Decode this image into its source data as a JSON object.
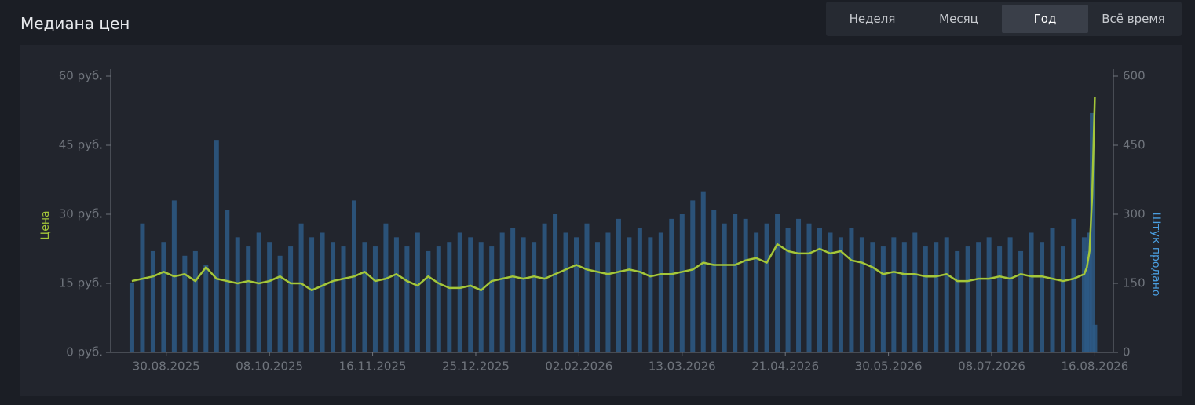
{
  "header": {
    "title": "Медиана цен",
    "tabs": [
      "Неделя",
      "Месяц",
      "Год",
      "Всё время"
    ],
    "active_tab": 2
  },
  "chart_data": {
    "type": "line-bar",
    "ylabel": "Цена",
    "y2label": "Штук продано",
    "x": [
      "17.08.2025",
      "21.08.2025",
      "25.08.2025",
      "29.08.2025",
      "02.09.2025",
      "06.09.2025",
      "10.09.2025",
      "14.09.2025",
      "18.09.2025",
      "22.09.2025",
      "26.09.2025",
      "30.09.2025",
      "04.10.2025",
      "08.10.2025",
      "12.10.2025",
      "16.10.2025",
      "20.10.2025",
      "24.10.2025",
      "28.10.2025",
      "01.11.2025",
      "05.11.2025",
      "09.11.2025",
      "13.11.2025",
      "17.11.2025",
      "21.11.2025",
      "25.11.2025",
      "29.11.2025",
      "03.12.2025",
      "07.12.2025",
      "11.12.2025",
      "15.12.2025",
      "19.12.2025",
      "23.12.2025",
      "27.12.2025",
      "31.12.2025",
      "04.01.2026",
      "08.01.2026",
      "12.01.2026",
      "16.01.2026",
      "20.01.2026",
      "24.01.2026",
      "28.01.2026",
      "01.02.2026",
      "05.02.2026",
      "09.02.2026",
      "13.02.2026",
      "17.02.2026",
      "21.02.2026",
      "25.02.2026",
      "01.03.2026",
      "05.03.2026",
      "09.03.2026",
      "13.03.2026",
      "17.03.2026",
      "21.03.2026",
      "25.03.2026",
      "29.03.2026",
      "02.04.2026",
      "06.04.2026",
      "10.04.2026",
      "14.04.2026",
      "18.04.2026",
      "22.04.2026",
      "26.04.2026",
      "30.04.2026",
      "04.05.2026",
      "08.05.2026",
      "12.05.2026",
      "16.05.2026",
      "20.05.2026",
      "24.05.2026",
      "28.05.2026",
      "01.06.2026",
      "05.06.2026",
      "09.06.2026",
      "13.06.2026",
      "17.06.2026",
      "21.06.2026",
      "25.06.2026",
      "29.06.2026",
      "03.07.2026",
      "07.07.2026",
      "11.07.2026",
      "15.07.2026",
      "19.07.2026",
      "23.07.2026",
      "27.07.2026",
      "31.07.2026",
      "04.08.2026",
      "08.08.2026",
      "12.08.2026",
      "13.08.2026",
      "14.08.2026",
      "15.08.2026",
      "16.08.2026"
    ],
    "series": [
      {
        "color": "#a4c639",
        "values": [
          15.5,
          16,
          16.5,
          17.5,
          16.5,
          17,
          15.5,
          18.5,
          16,
          15.5,
          15,
          15.5,
          15,
          15.5,
          16.5,
          15,
          15,
          13.5,
          14.5,
          15.5,
          16,
          16.5,
          17.5,
          15.5,
          16,
          17,
          15.5,
          14.5,
          16.5,
          15,
          14,
          14,
          14.5,
          13.5,
          15.5,
          16,
          16.5,
          16,
          16.5,
          16,
          17,
          18,
          19,
          18,
          17.5,
          17,
          17.5,
          18,
          17.5,
          16.5,
          17,
          17,
          17.5,
          18,
          19.5,
          19,
          19,
          19,
          20,
          20.5,
          19.5,
          23.5,
          22,
          21.5,
          21.5,
          22.5,
          21.5,
          22,
          20,
          19.5,
          18.5,
          17,
          17.5,
          17,
          17,
          16.5,
          16.5,
          17,
          15.5,
          15.5,
          16,
          16,
          16.5,
          16,
          17,
          16.5,
          16.5,
          16,
          15.5,
          16,
          17,
          18.5,
          22,
          34,
          55.5
        ]
      },
      {
        "color": "#2d5a86",
        "axis": "y2",
        "values": [
          150,
          280,
          220,
          240,
          330,
          210,
          220,
          190,
          460,
          310,
          250,
          230,
          260,
          240,
          210,
          230,
          280,
          250,
          260,
          240,
          230,
          330,
          240,
          230,
          280,
          250,
          230,
          260,
          220,
          230,
          240,
          260,
          250,
          240,
          230,
          260,
          270,
          250,
          240,
          280,
          300,
          260,
          250,
          280,
          240,
          260,
          290,
          250,
          270,
          250,
          260,
          290,
          300,
          330,
          350,
          310,
          280,
          300,
          290,
          260,
          280,
          300,
          270,
          290,
          280,
          270,
          260,
          250,
          270,
          250,
          240,
          230,
          250,
          240,
          260,
          230,
          240,
          250,
          220,
          230,
          240,
          250,
          230,
          250,
          220,
          260,
          240,
          270,
          230,
          290,
          250,
          220,
          260,
          520,
          60
        ]
      }
    ],
    "xlim": [
      "09.08.2025",
      "23.08.2026"
    ],
    "xticks": [
      "30.08.2025",
      "08.10.2025",
      "16.11.2025",
      "25.12.2025",
      "02.02.2026",
      "13.03.2026",
      "21.04.2026",
      "30.05.2026",
      "08.07.2026",
      "16.08.2026"
    ],
    "ylim": [
      0,
      60
    ],
    "yticks": [
      {
        "value": 0,
        "label": "0 руб."
      },
      {
        "value": 15,
        "label": "15 руб."
      },
      {
        "value": 30,
        "label": "30 руб."
      },
      {
        "value": 45,
        "label": "45 руб."
      },
      {
        "value": 60,
        "label": "60 руб."
      }
    ],
    "y2lim": [
      0,
      600
    ],
    "y2ticks": [
      0,
      150,
      300,
      450,
      600
    ]
  }
}
